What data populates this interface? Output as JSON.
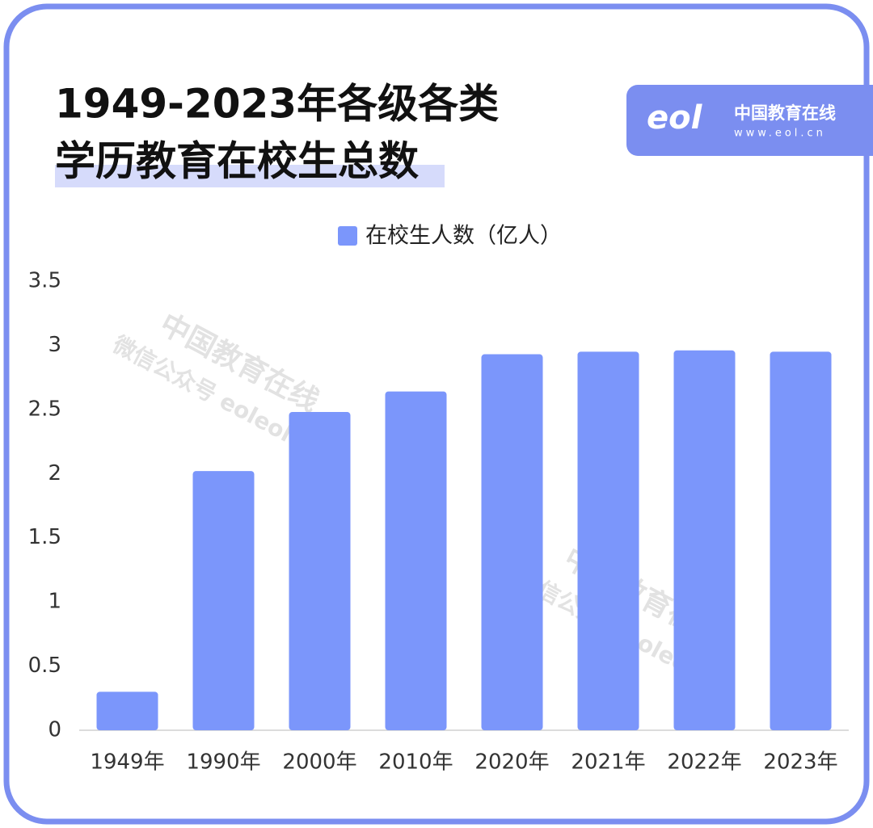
{
  "header": {
    "title_lines": [
      "1949-2023年各级各类",
      "学历教育在校生总数"
    ],
    "logo": {
      "mark": "eol",
      "name": "中国教育在线",
      "url": "www.eol.cn"
    }
  },
  "chart_data": {
    "type": "bar",
    "categories": [
      "1949年",
      "1990年",
      "2000年",
      "2010年",
      "2020年",
      "2021年",
      "2022年",
      "2023年"
    ],
    "series": [
      {
        "name": "在校生人数（亿人）",
        "color": "#7b96fb",
        "values": [
          0.3,
          2.02,
          2.48,
          2.64,
          2.93,
          2.95,
          2.96,
          2.95
        ]
      }
    ],
    "ylim": [
      0,
      3.5
    ],
    "yticks": [
      0,
      0.5,
      1,
      1.5,
      2,
      2.5,
      3,
      3.5
    ],
    "grid": false,
    "legend": "top"
  },
  "watermarks": [
    {
      "title": "中国教育在线",
      "subtitle": "微信公众号 eoleoleol"
    },
    {
      "title": "中国教育在线",
      "subtitle": "微信公众号 eoleoleol"
    }
  ]
}
